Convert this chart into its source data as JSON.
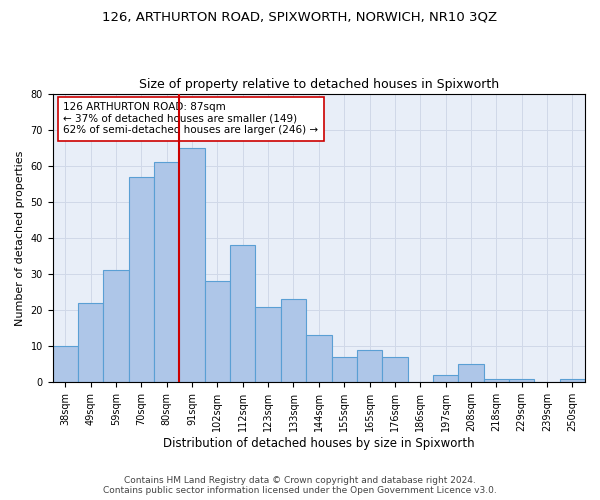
{
  "title1": "126, ARTHURTON ROAD, SPIXWORTH, NORWICH, NR10 3QZ",
  "title2": "Size of property relative to detached houses in Spixworth",
  "xlabel": "Distribution of detached houses by size in Spixworth",
  "ylabel": "Number of detached properties",
  "categories": [
    "38sqm",
    "49sqm",
    "59sqm",
    "70sqm",
    "80sqm",
    "91sqm",
    "102sqm",
    "112sqm",
    "123sqm",
    "133sqm",
    "144sqm",
    "155sqm",
    "165sqm",
    "176sqm",
    "186sqm",
    "197sqm",
    "208sqm",
    "218sqm",
    "229sqm",
    "239sqm",
    "250sqm"
  ],
  "values": [
    10,
    22,
    31,
    57,
    61,
    65,
    28,
    38,
    21,
    23,
    13,
    7,
    9,
    7,
    0,
    2,
    5,
    1,
    1,
    0,
    1
  ],
  "bar_color": "#aec6e8",
  "bar_edge_color": "#5a9fd4",
  "vline_color": "#cc0000",
  "vline_pos": 4.5,
  "annotation_text": "126 ARTHURTON ROAD: 87sqm\n← 37% of detached houses are smaller (149)\n62% of semi-detached houses are larger (246) →",
  "annotation_box_color": "#ffffff",
  "annotation_box_edge": "#cc0000",
  "ylim": [
    0,
    80
  ],
  "yticks": [
    0,
    10,
    20,
    30,
    40,
    50,
    60,
    70,
    80
  ],
  "grid_color": "#d0d8e8",
  "bg_color": "#e8eef8",
  "footnote": "Contains HM Land Registry data © Crown copyright and database right 2024.\nContains public sector information licensed under the Open Government Licence v3.0.",
  "title1_fontsize": 9.5,
  "title2_fontsize": 9,
  "xlabel_fontsize": 8.5,
  "ylabel_fontsize": 8,
  "tick_fontsize": 7,
  "annot_fontsize": 7.5,
  "footnote_fontsize": 6.5
}
